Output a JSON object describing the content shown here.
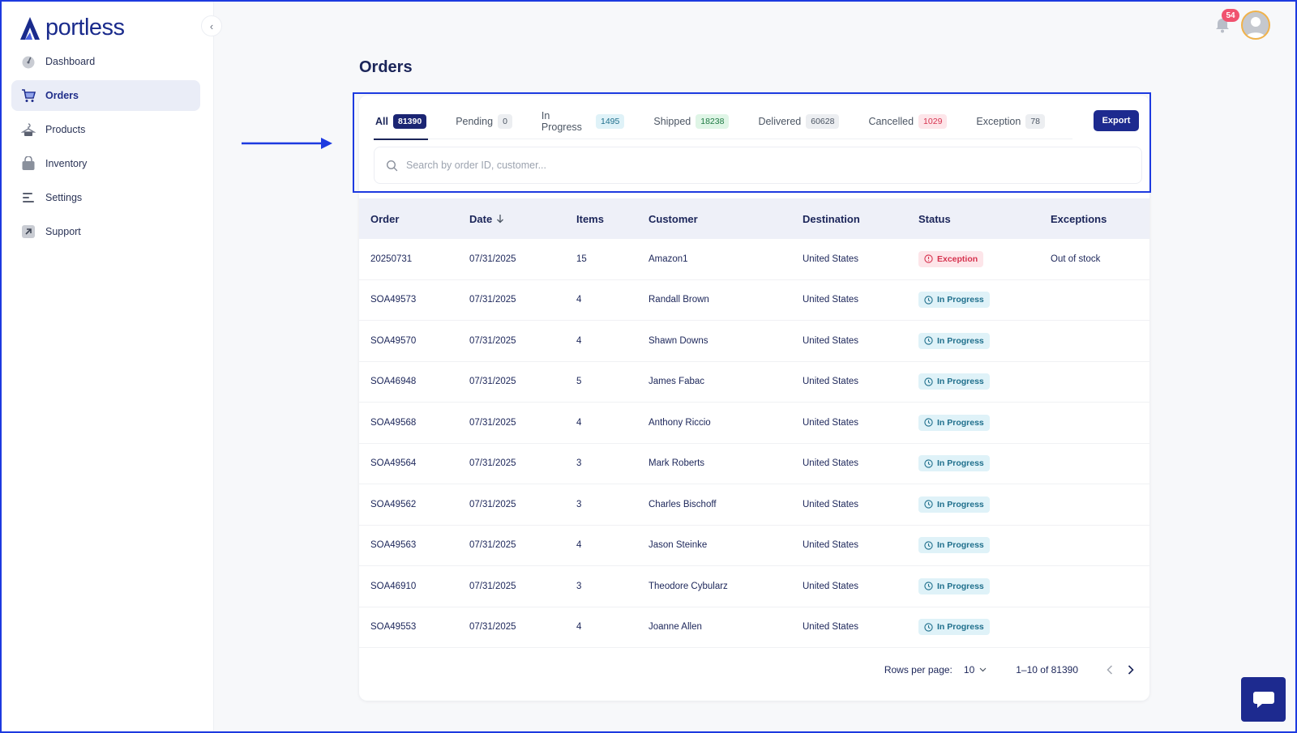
{
  "brand": {
    "name": "portless"
  },
  "sidebar": {
    "items": [
      {
        "label": "Dashboard",
        "icon": "gauge-icon",
        "active": false
      },
      {
        "label": "Orders",
        "icon": "cart-icon",
        "active": true
      },
      {
        "label": "Products",
        "icon": "hanger-icon",
        "active": false
      },
      {
        "label": "Inventory",
        "icon": "bag-icon",
        "active": false
      },
      {
        "label": "Settings",
        "icon": "sliders-icon",
        "active": false
      },
      {
        "label": "Support",
        "icon": "arrow-up-right-icon",
        "active": false
      }
    ]
  },
  "header": {
    "notification_count": "54"
  },
  "page": {
    "title": "Orders"
  },
  "tabs": [
    {
      "label": "All",
      "count": "81390",
      "style": "all"
    },
    {
      "label": "Pending",
      "count": "0",
      "style": "gray"
    },
    {
      "label": "In Progress",
      "count": "1495",
      "style": "blue"
    },
    {
      "label": "Shipped",
      "count": "18238",
      "style": "green"
    },
    {
      "label": "Delivered",
      "count": "60628",
      "style": "gray"
    },
    {
      "label": "Cancelled",
      "count": "1029",
      "style": "red"
    },
    {
      "label": "Exception",
      "count": "78",
      "style": "gray"
    }
  ],
  "toolbar": {
    "export_label": "Export"
  },
  "search": {
    "placeholder": "Search by order ID, customer...",
    "value": ""
  },
  "table": {
    "columns": [
      "Order",
      "Date",
      "Items",
      "Customer",
      "Destination",
      "Status",
      "Exceptions"
    ],
    "rows": [
      {
        "order": "20250731",
        "date": "07/31/2025",
        "items": "15",
        "customer": "Amazon1",
        "destination": "United States",
        "status": "Exception",
        "exceptions": "Out of stock"
      },
      {
        "order": "SOA49573",
        "date": "07/31/2025",
        "items": "4",
        "customer": "Randall Brown",
        "destination": "United States",
        "status": "In Progress",
        "exceptions": ""
      },
      {
        "order": "SOA49570",
        "date": "07/31/2025",
        "items": "4",
        "customer": "Shawn Downs",
        "destination": "United States",
        "status": "In Progress",
        "exceptions": ""
      },
      {
        "order": "SOA46948",
        "date": "07/31/2025",
        "items": "5",
        "customer": "James Fabac",
        "destination": "United States",
        "status": "In Progress",
        "exceptions": ""
      },
      {
        "order": "SOA49568",
        "date": "07/31/2025",
        "items": "4",
        "customer": "Anthony Riccio",
        "destination": "United States",
        "status": "In Progress",
        "exceptions": ""
      },
      {
        "order": "SOA49564",
        "date": "07/31/2025",
        "items": "3",
        "customer": "Mark Roberts",
        "destination": "United States",
        "status": "In Progress",
        "exceptions": ""
      },
      {
        "order": "SOA49562",
        "date": "07/31/2025",
        "items": "3",
        "customer": "Charles Bischoff",
        "destination": "United States",
        "status": "In Progress",
        "exceptions": ""
      },
      {
        "order": "SOA49563",
        "date": "07/31/2025",
        "items": "4",
        "customer": "Jason Steinke",
        "destination": "United States",
        "status": "In Progress",
        "exceptions": ""
      },
      {
        "order": "SOA46910",
        "date": "07/31/2025",
        "items": "3",
        "customer": "Theodore Cybularz",
        "destination": "United States",
        "status": "In Progress",
        "exceptions": ""
      },
      {
        "order": "SOA49553",
        "date": "07/31/2025",
        "items": "4",
        "customer": "Joanne Allen",
        "destination": "United States",
        "status": "In Progress",
        "exceptions": ""
      }
    ]
  },
  "pagination": {
    "rows_per_page_label": "Rows per page:",
    "rows_per_page": "10",
    "range": "1–10 of 81390"
  },
  "colors": {
    "accent": "#1d2a8f",
    "annotation": "#1d3ae0",
    "exception": "#d6334f",
    "in_progress": "#1f6f8c"
  }
}
